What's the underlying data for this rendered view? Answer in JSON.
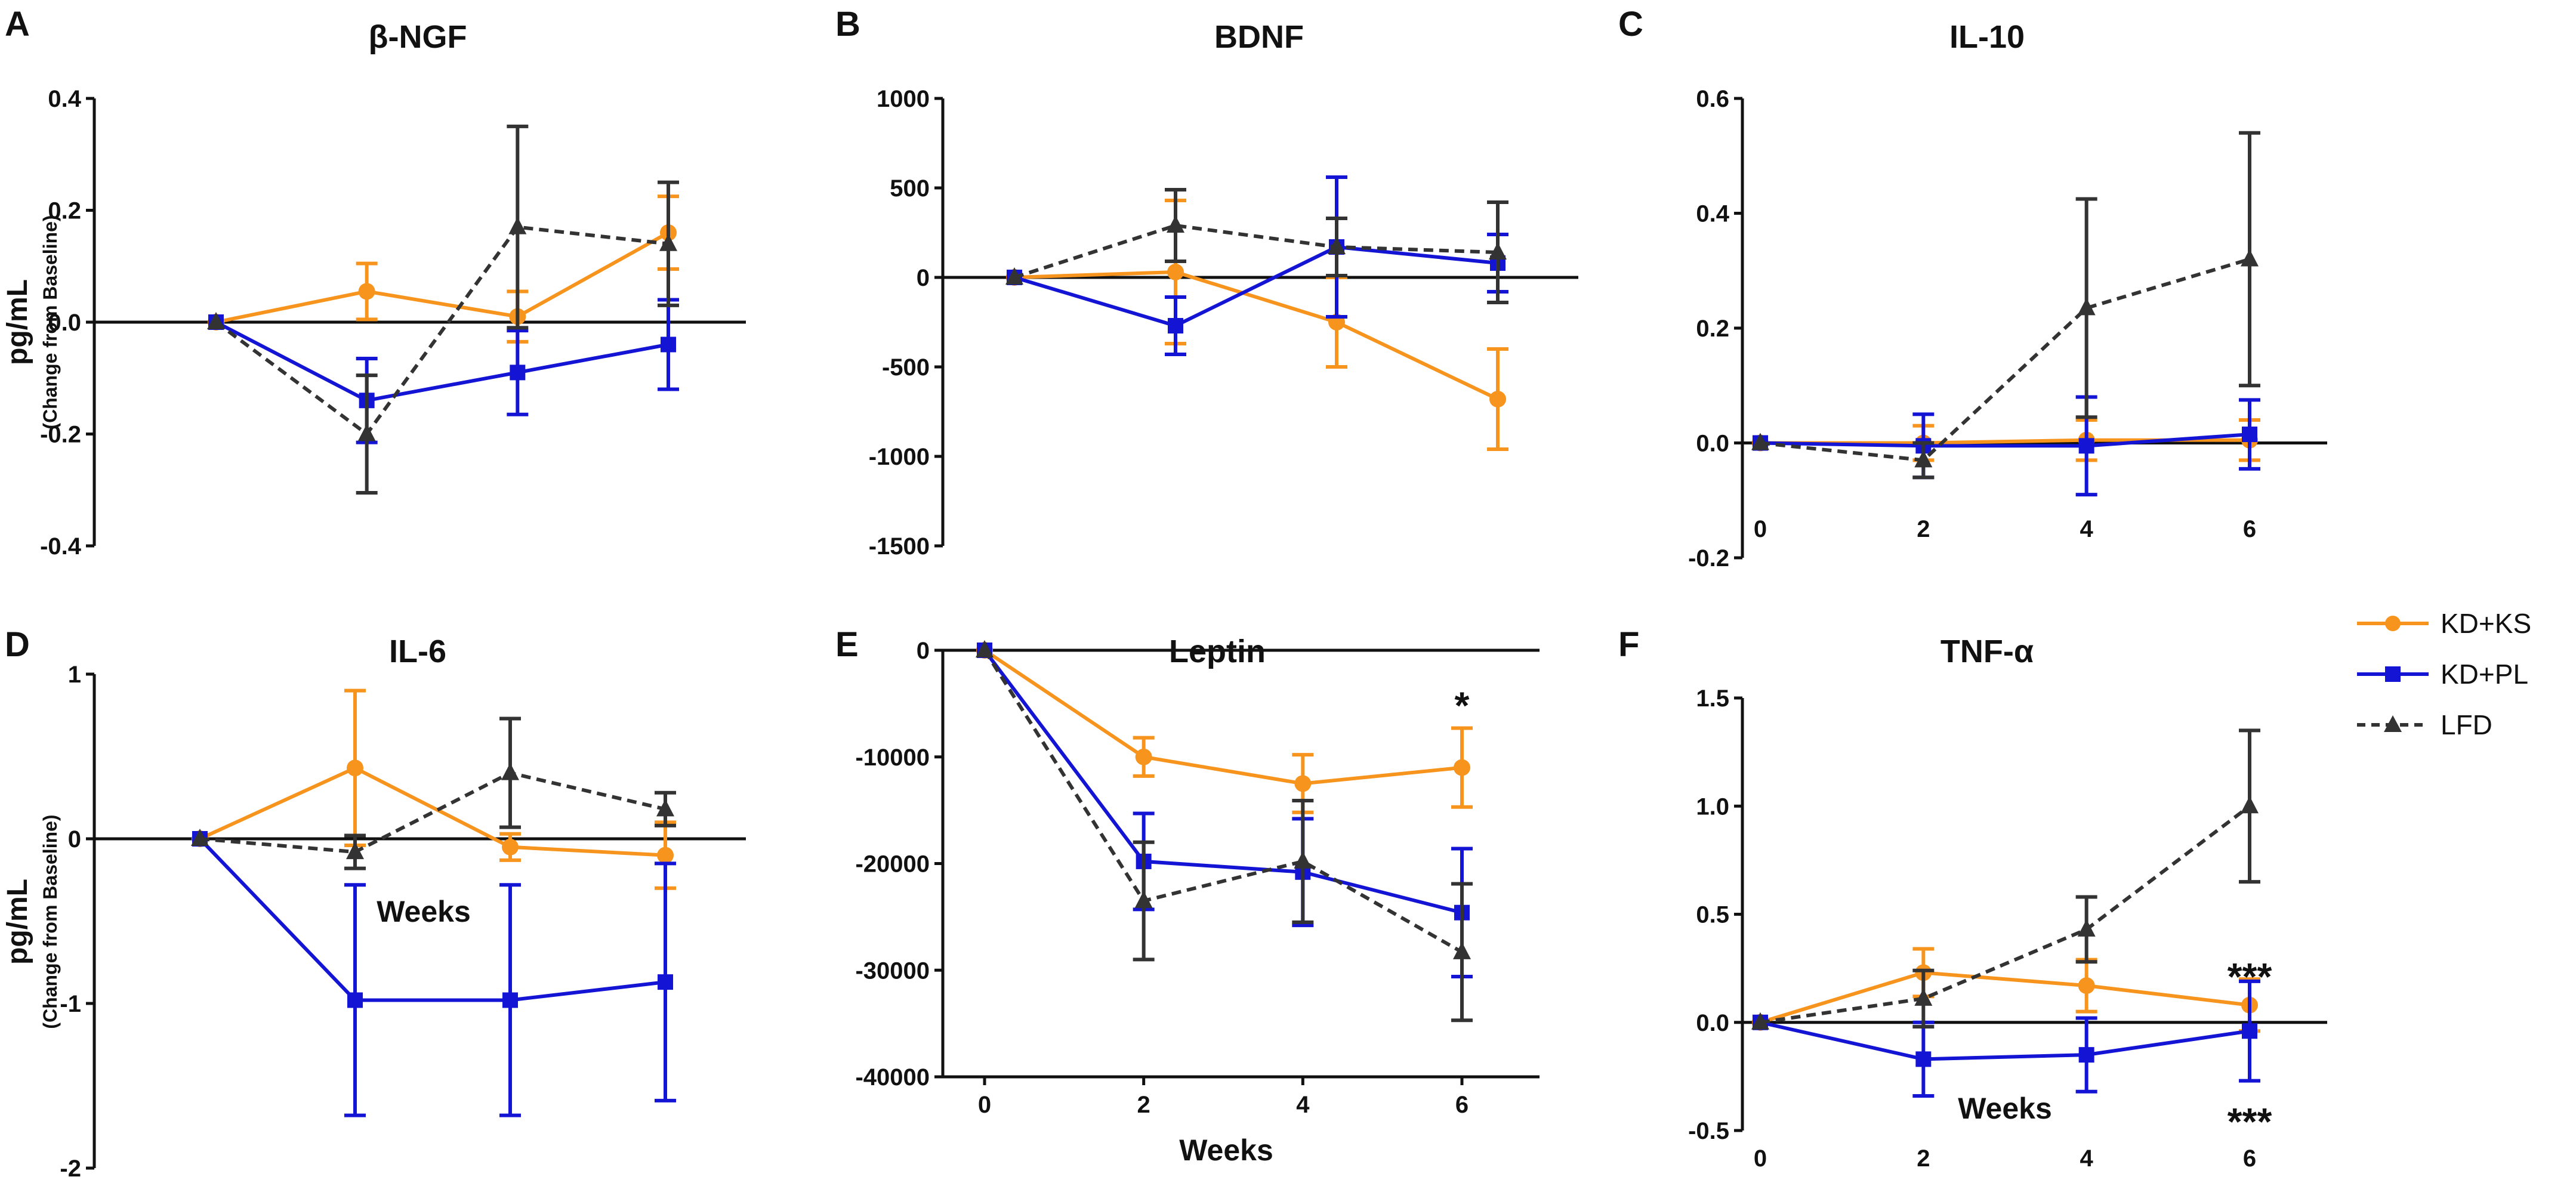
{
  "figure": {
    "ylabel_main": "pg/mL",
    "ylabel_sub": "(Change from Baseline)",
    "weeks_label": "Weeks"
  },
  "legend": [
    {
      "label": "KD+KS",
      "color": "#F7941D",
      "marker": "circle",
      "dash": false
    },
    {
      "label": "KD+PL",
      "color": "#1414D4",
      "marker": "square",
      "dash": false
    },
    {
      "label": "LFD",
      "color": "#333333",
      "marker": "triangle",
      "dash": true
    }
  ],
  "chart_data": [
    {
      "panel": "A",
      "title": "β-NGF",
      "type": "line",
      "x": [
        0,
        2,
        4,
        6
      ],
      "ylim": [
        -0.4,
        0.4
      ],
      "yticks": [
        -0.4,
        -0.2,
        0.0,
        0.2,
        0.4
      ],
      "ytick_labels": [
        "-0.4",
        "-0.2",
        "0.0",
        "0.2",
        "0.4"
      ],
      "xtick_labels": [],
      "series": [
        {
          "name": "KD+KS",
          "values": [
            0,
            0.055,
            0.01,
            0.16
          ],
          "errors": [
            0,
            0.05,
            0.045,
            0.065
          ]
        },
        {
          "name": "KD+PL",
          "values": [
            0,
            -0.14,
            -0.09,
            -0.04
          ],
          "errors": [
            0,
            0.075,
            0.075,
            0.08
          ]
        },
        {
          "name": "LFD",
          "values": [
            0,
            -0.2,
            0.17,
            0.14
          ],
          "errors": [
            0,
            0.105,
            0.18,
            0.11
          ]
        }
      ],
      "annotations": []
    },
    {
      "panel": "B",
      "title": "BDNF",
      "type": "line",
      "x": [
        0,
        2,
        4,
        6
      ],
      "ylim": [
        -1500,
        1000
      ],
      "yticks": [
        -1500,
        -1000,
        -500,
        0,
        500,
        1000
      ],
      "ytick_labels": [
        "-1500",
        "-1000",
        "-500",
        "0",
        "500",
        "1000"
      ],
      "xtick_labels": [],
      "series": [
        {
          "name": "KD+KS",
          "values": [
            0,
            30,
            -250,
            -680
          ],
          "errors": [
            0,
            400,
            250,
            280
          ]
        },
        {
          "name": "KD+PL",
          "values": [
            0,
            -270,
            170,
            80
          ],
          "errors": [
            0,
            160,
            390,
            160
          ]
        },
        {
          "name": "LFD",
          "values": [
            0,
            290,
            170,
            140
          ],
          "errors": [
            0,
            200,
            160,
            280
          ]
        }
      ],
      "annotations": []
    },
    {
      "panel": "C",
      "title": "IL-10",
      "type": "line",
      "x": [
        0,
        2,
        4,
        6
      ],
      "ylim": [
        -0.2,
        0.6
      ],
      "yticks": [
        -0.2,
        0.0,
        0.2,
        0.4,
        0.6
      ],
      "ytick_labels": [
        "-0.2",
        "0.0",
        "0.2",
        "0.4",
        "0.6"
      ],
      "xtick_labels": [
        "0",
        "2",
        "4",
        "6"
      ],
      "series": [
        {
          "name": "KD+KS",
          "values": [
            0,
            0.0,
            0.005,
            0.005
          ],
          "errors": [
            0,
            0.03,
            0.035,
            0.035
          ]
        },
        {
          "name": "KD+PL",
          "values": [
            0,
            -0.005,
            -0.005,
            0.015
          ],
          "errors": [
            0,
            0.055,
            0.085,
            0.06
          ]
        },
        {
          "name": "LFD",
          "values": [
            0,
            -0.03,
            0.235,
            0.32
          ],
          "errors": [
            0,
            0.03,
            0.19,
            0.22
          ]
        }
      ],
      "annotations": []
    },
    {
      "panel": "D",
      "title": "IL-6",
      "type": "line",
      "x": [
        0,
        2,
        4,
        6
      ],
      "ylim": [
        -2,
        1
      ],
      "yticks": [
        -2,
        -1,
        0,
        1
      ],
      "ytick_labels": [
        "-2",
        "-1",
        "0",
        "1"
      ],
      "xtick_labels": [],
      "series": [
        {
          "name": "KD+KS",
          "values": [
            0,
            0.43,
            -0.05,
            -0.1
          ],
          "errors": [
            0,
            0.47,
            0.08,
            0.2
          ]
        },
        {
          "name": "KD+PL",
          "values": [
            0,
            -0.98,
            -0.98,
            -0.87
          ],
          "errors": [
            0,
            0.7,
            0.7,
            0.72
          ]
        },
        {
          "name": "LFD",
          "values": [
            0,
            -0.08,
            0.4,
            0.18
          ],
          "errors": [
            0,
            0.1,
            0.33,
            0.1
          ]
        }
      ],
      "annotations": []
    },
    {
      "panel": "E",
      "title": "Leptin",
      "type": "line",
      "x": [
        0,
        2,
        4,
        6
      ],
      "ylim": [
        -40000,
        0
      ],
      "yticks": [
        -40000,
        -30000,
        -20000,
        -10000,
        0
      ],
      "ytick_labels": [
        "-40000",
        "-30000",
        "-20000",
        "-10000",
        "0"
      ],
      "xtick_labels": [
        "0",
        "2",
        "4",
        "6"
      ],
      "series": [
        {
          "name": "KD+KS",
          "values": [
            0,
            -10000,
            -12500,
            -11000
          ],
          "errors": [
            0,
            1800,
            2700,
            3700
          ]
        },
        {
          "name": "KD+PL",
          "values": [
            0,
            -19800,
            -20800,
            -24600
          ],
          "errors": [
            0,
            4500,
            5000,
            6000
          ]
        },
        {
          "name": "LFD",
          "values": [
            0,
            -23500,
            -19800,
            -28300
          ],
          "errors": [
            0,
            5500,
            5700,
            6400
          ]
        }
      ],
      "annotations": [
        {
          "text": "*",
          "x": 6,
          "y": -5000
        }
      ]
    },
    {
      "panel": "F",
      "title": "TNF-α",
      "type": "line",
      "x": [
        0,
        2,
        4,
        6
      ],
      "ylim": [
        -0.5,
        1.5
      ],
      "yticks": [
        -0.5,
        0.0,
        0.5,
        1.0,
        1.5
      ],
      "ytick_labels": [
        "-0.5",
        "0.0",
        "0.5",
        "1.0",
        "1.5"
      ],
      "xtick_labels": [
        "0",
        "2",
        "4",
        "6"
      ],
      "series": [
        {
          "name": "KD+KS",
          "values": [
            0,
            0.23,
            0.17,
            0.08
          ],
          "errors": [
            0,
            0.11,
            0.12,
            0.12
          ]
        },
        {
          "name": "KD+PL",
          "values": [
            0,
            -0.17,
            -0.15,
            -0.04
          ],
          "errors": [
            0,
            0.17,
            0.17,
            0.23
          ]
        },
        {
          "name": "LFD",
          "values": [
            0,
            0.11,
            0.43,
            1.0
          ],
          "errors": [
            0,
            0.13,
            0.15,
            0.35
          ]
        }
      ],
      "annotations": [
        {
          "text": "***",
          "x": 6,
          "y": 0.22
        },
        {
          "text": "***",
          "x": 6,
          "y": -0.45
        }
      ]
    }
  ]
}
